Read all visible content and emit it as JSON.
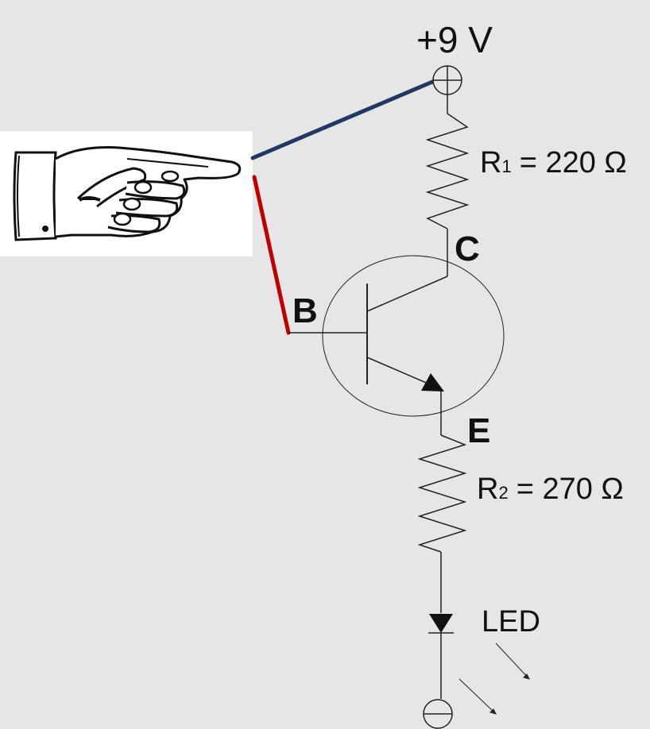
{
  "supply": {
    "label": "+9 V"
  },
  "resistor1": {
    "letter": "R",
    "sub": "1",
    "value": "= 220 Ω"
  },
  "resistor2": {
    "letter": "R",
    "sub": "2",
    "value": "= 270 Ω"
  },
  "transistor": {
    "collector": "C",
    "base": "B",
    "emitter": "E"
  },
  "led": {
    "label": "LED"
  },
  "wires": {
    "positive_color": "#1f3864",
    "base_color": "#c00000"
  },
  "icons": {
    "hand": "pointing-hand-icon",
    "positive": "plus-terminal-icon",
    "negative": "minus-terminal-icon"
  }
}
